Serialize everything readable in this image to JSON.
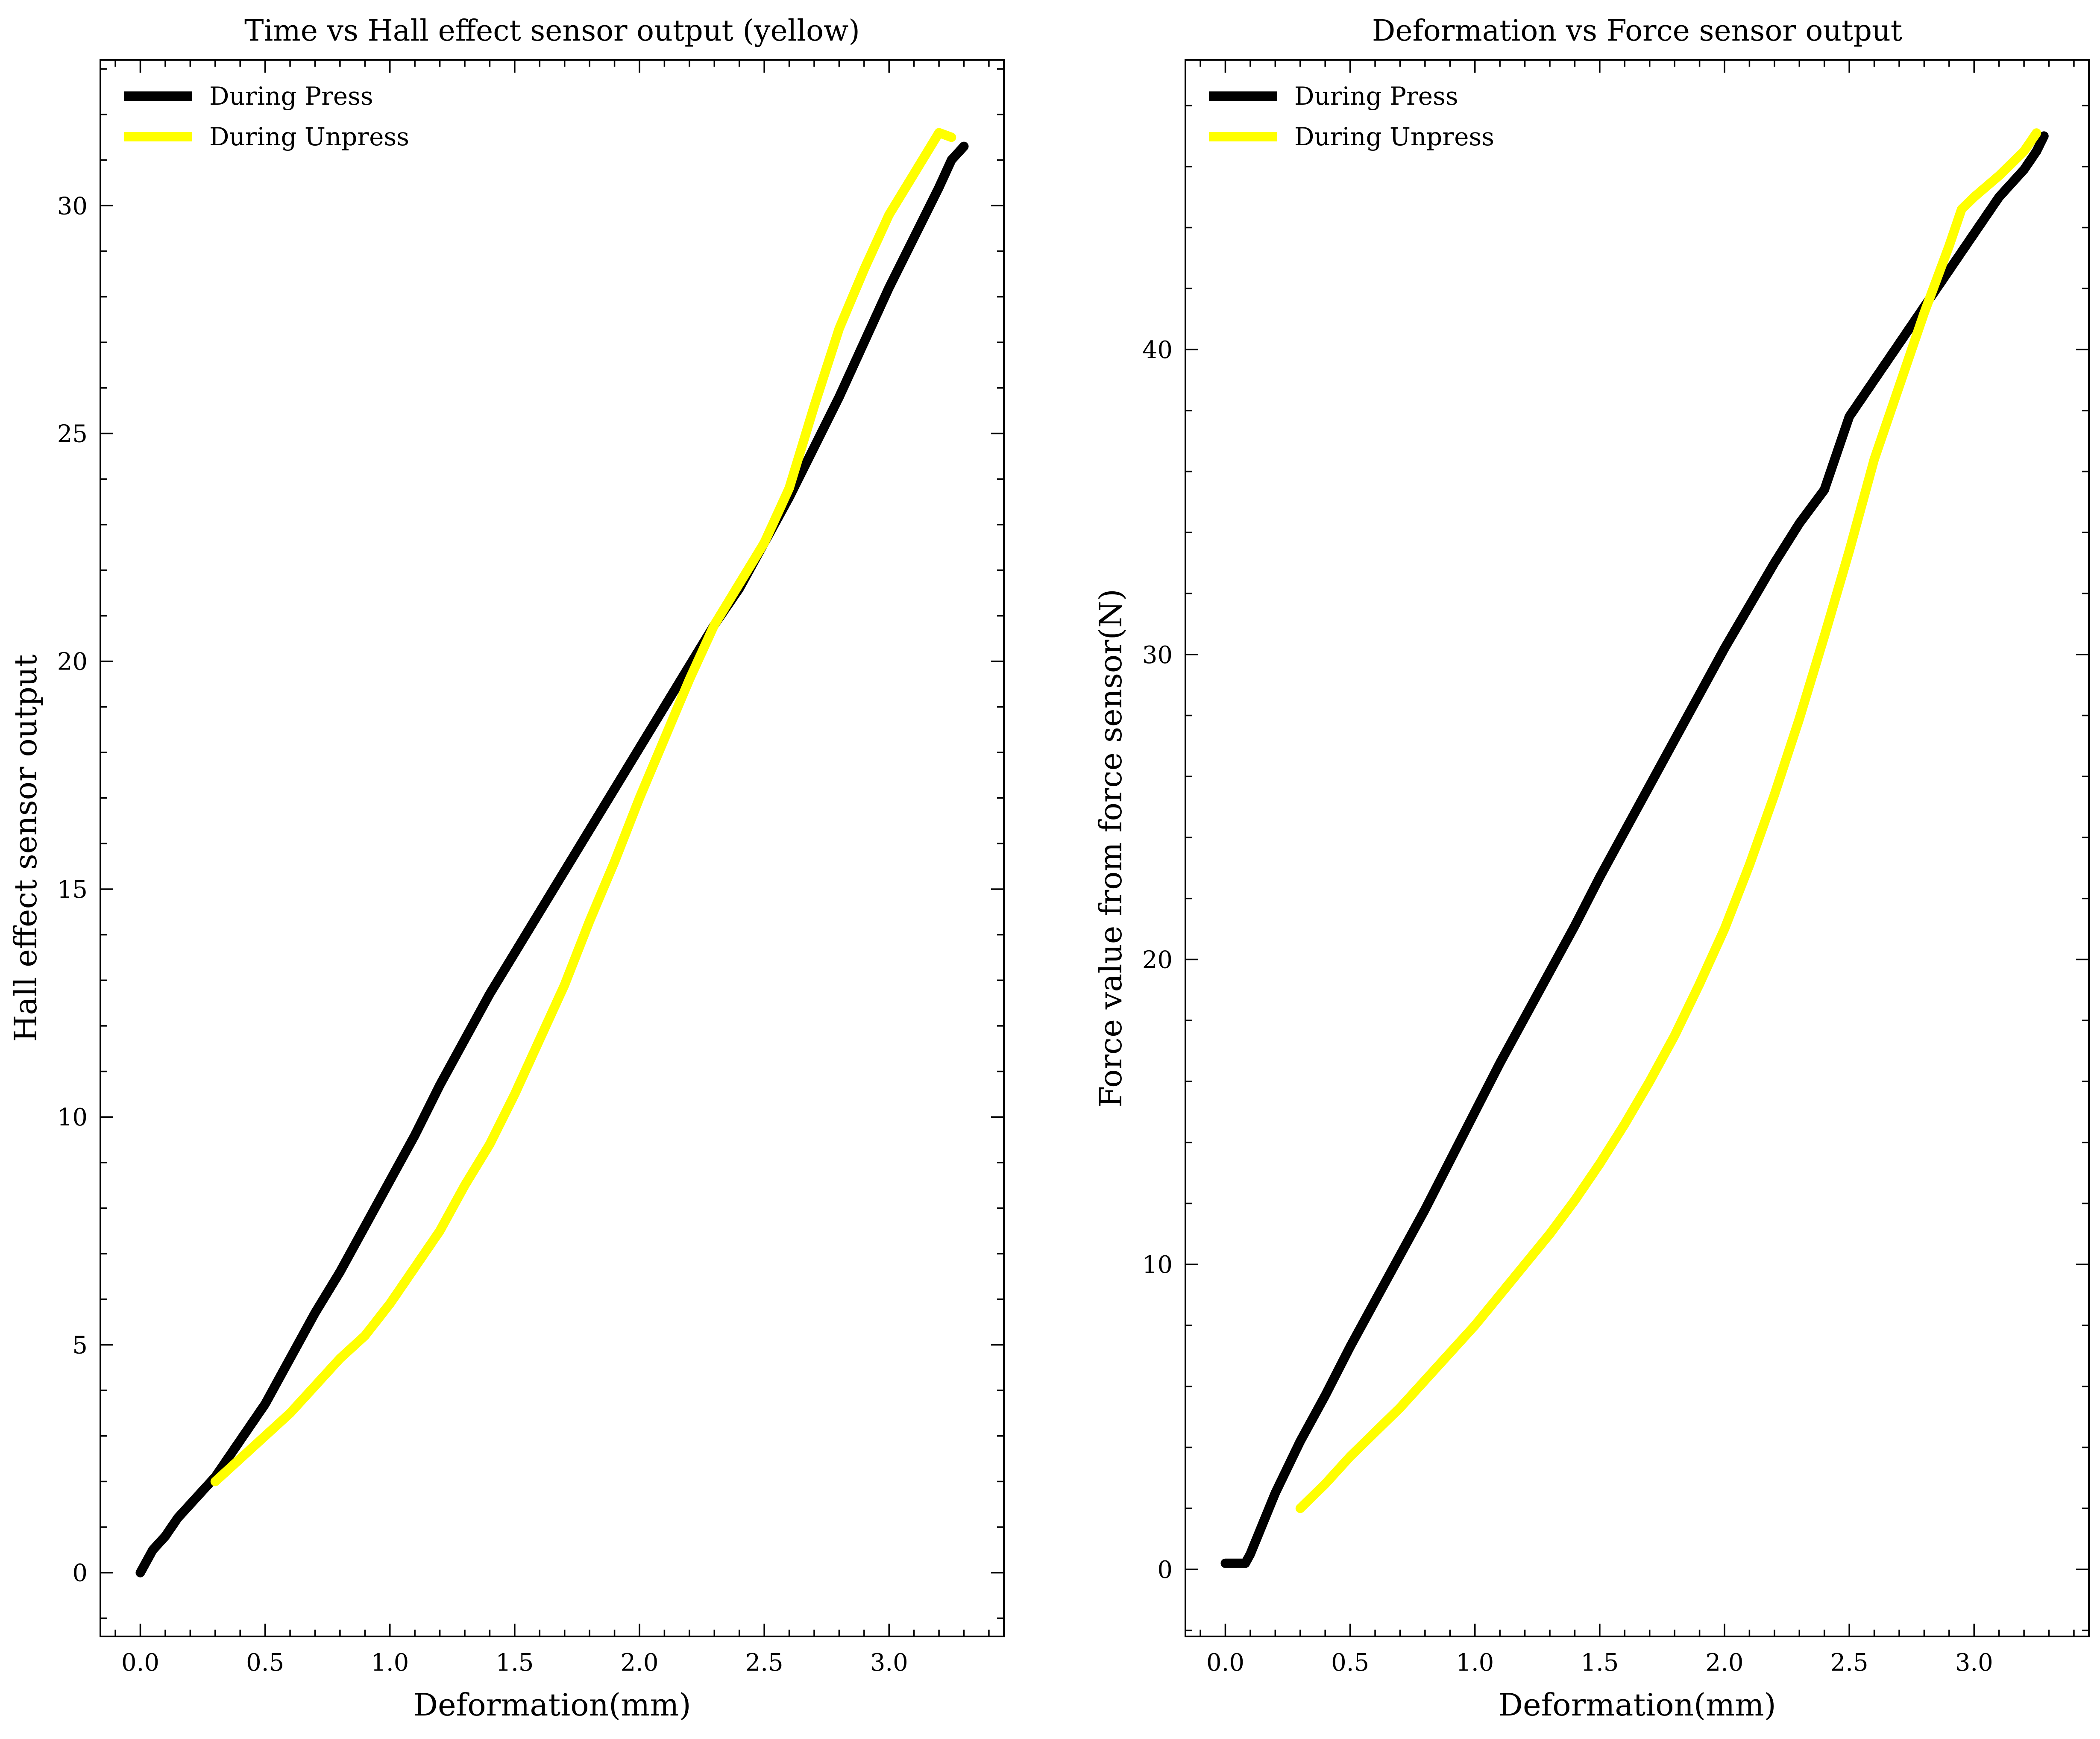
{
  "chart_data": [
    {
      "type": "line",
      "title": "Time vs Hall effect sensor output (yellow)",
      "xlabel": "Deformation(mm)",
      "ylabel": "Hall effect sensor output",
      "xlim": [
        -0.16,
        3.46
      ],
      "ylim": [
        -1.4,
        33.2
      ],
      "xticks": [
        0.0,
        0.5,
        1.0,
        1.5,
        2.0,
        2.5,
        3.0
      ],
      "yticks": [
        0,
        5,
        10,
        15,
        20,
        25,
        30
      ],
      "xtick_labels": [
        "0.0",
        "0.5",
        "1.0",
        "1.5",
        "2.0",
        "2.5",
        "3.0"
      ],
      "ytick_labels": [
        "0",
        "5",
        "10",
        "15",
        "20",
        "25",
        "30"
      ],
      "grid": false,
      "legend_position": "top-left",
      "series": [
        {
          "name": "During Press",
          "color": "#000000",
          "x": [
            0.0,
            0.05,
            0.1,
            0.15,
            0.2,
            0.25,
            0.3,
            0.4,
            0.5,
            0.6,
            0.7,
            0.8,
            0.9,
            1.0,
            1.1,
            1.2,
            1.3,
            1.4,
            1.5,
            1.6,
            1.7,
            1.8,
            1.9,
            2.0,
            2.1,
            2.2,
            2.3,
            2.4,
            2.5,
            2.6,
            2.7,
            2.8,
            2.9,
            3.0,
            3.1,
            3.2,
            3.25,
            3.3
          ],
          "y": [
            0.0,
            0.5,
            0.8,
            1.2,
            1.5,
            1.8,
            2.1,
            2.9,
            3.7,
            4.7,
            5.7,
            6.6,
            7.6,
            8.6,
            9.6,
            10.7,
            11.7,
            12.7,
            13.6,
            14.5,
            15.4,
            16.3,
            17.2,
            18.1,
            19.0,
            19.9,
            20.8,
            21.6,
            22.6,
            23.6,
            24.7,
            25.8,
            27.0,
            28.2,
            29.3,
            30.4,
            31.0,
            31.3
          ]
        },
        {
          "name": "During Unpress",
          "color": "#ffff00",
          "x": [
            0.3,
            0.4,
            0.5,
            0.6,
            0.7,
            0.8,
            0.9,
            1.0,
            1.1,
            1.2,
            1.3,
            1.4,
            1.5,
            1.6,
            1.7,
            1.8,
            1.9,
            2.0,
            2.1,
            2.2,
            2.3,
            2.4,
            2.5,
            2.6,
            2.7,
            2.8,
            2.9,
            3.0,
            3.1,
            3.2,
            3.25
          ],
          "y": [
            2.0,
            2.5,
            3.0,
            3.5,
            4.1,
            4.7,
            5.2,
            5.9,
            6.7,
            7.5,
            8.5,
            9.4,
            10.5,
            11.7,
            12.9,
            14.3,
            15.6,
            17.0,
            18.3,
            19.6,
            20.8,
            21.7,
            22.6,
            23.8,
            25.6,
            27.3,
            28.6,
            29.8,
            30.7,
            31.6,
            31.5
          ]
        }
      ]
    },
    {
      "type": "line",
      "title": "Deformation vs Force sensor output",
      "xlabel": "Deformation(mm)",
      "ylabel": "Force value from force sensor(N)",
      "xlim": [
        -0.16,
        3.46
      ],
      "ylim": [
        -2.2,
        49.5
      ],
      "xticks": [
        0.0,
        0.5,
        1.0,
        1.5,
        2.0,
        2.5,
        3.0
      ],
      "yticks": [
        0,
        10,
        20,
        30,
        40
      ],
      "xtick_labels": [
        "0.0",
        "0.5",
        "1.0",
        "1.5",
        "2.0",
        "2.5",
        "3.0"
      ],
      "ytick_labels": [
        "0",
        "10",
        "20",
        "30",
        "40"
      ],
      "grid": false,
      "legend_position": "top-left",
      "series": [
        {
          "name": "During Press",
          "color": "#000000",
          "x": [
            0.0,
            0.05,
            0.08,
            0.1,
            0.15,
            0.2,
            0.3,
            0.4,
            0.5,
            0.6,
            0.7,
            0.8,
            0.9,
            1.0,
            1.1,
            1.2,
            1.3,
            1.4,
            1.5,
            1.6,
            1.7,
            1.8,
            1.9,
            2.0,
            2.1,
            2.2,
            2.3,
            2.4,
            2.45,
            2.5,
            2.6,
            2.7,
            2.8,
            2.9,
            3.0,
            3.1,
            3.2,
            3.25,
            3.28
          ],
          "y": [
            0.2,
            0.2,
            0.2,
            0.5,
            1.5,
            2.5,
            4.2,
            5.7,
            7.3,
            8.8,
            10.3,
            11.8,
            13.4,
            15.0,
            16.6,
            18.1,
            19.6,
            21.1,
            22.7,
            24.2,
            25.7,
            27.2,
            28.7,
            30.2,
            31.6,
            33.0,
            34.3,
            35.4,
            36.6,
            37.8,
            39.0,
            40.2,
            41.4,
            42.6,
            43.8,
            45.0,
            45.9,
            46.5,
            47.0
          ]
        },
        {
          "name": "During Unpress",
          "color": "#ffff00",
          "x": [
            0.3,
            0.4,
            0.5,
            0.6,
            0.7,
            0.8,
            0.9,
            1.0,
            1.1,
            1.2,
            1.3,
            1.4,
            1.5,
            1.6,
            1.7,
            1.8,
            1.9,
            2.0,
            2.1,
            2.2,
            2.3,
            2.4,
            2.5,
            2.6,
            2.7,
            2.8,
            2.9,
            2.95,
            3.0,
            3.1,
            3.2,
            3.25
          ],
          "y": [
            2.0,
            2.8,
            3.7,
            4.5,
            5.3,
            6.2,
            7.1,
            8.0,
            9.0,
            10.0,
            11.0,
            12.1,
            13.3,
            14.6,
            16.0,
            17.5,
            19.2,
            21.0,
            23.1,
            25.4,
            27.9,
            30.6,
            33.4,
            36.4,
            38.8,
            41.2,
            43.4,
            44.6,
            45.0,
            45.7,
            46.5,
            47.1
          ]
        }
      ]
    }
  ]
}
